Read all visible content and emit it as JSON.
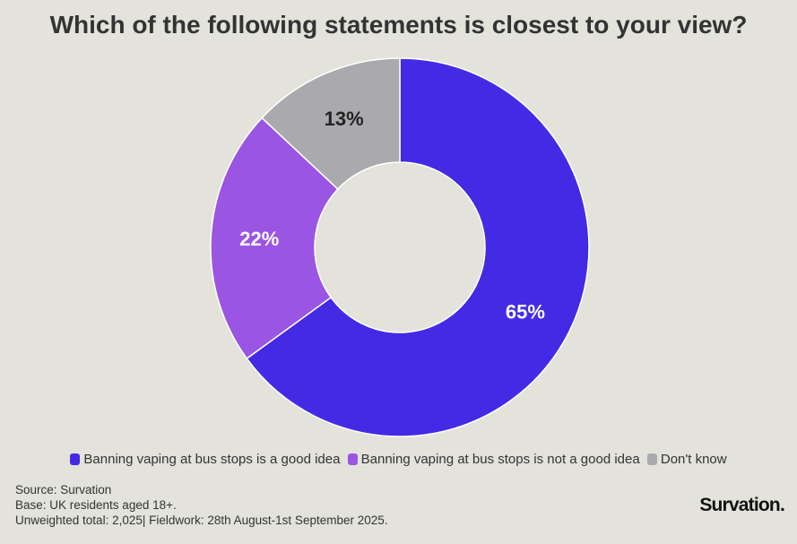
{
  "title": "Which of the following statements is closest to your view?",
  "chart_data": {
    "type": "pie",
    "donut": true,
    "categories": [
      "Banning vaping at bus stops is a good idea",
      "Banning vaping at bus stops is not a good idea",
      "Don't know"
    ],
    "values": [
      65,
      22,
      13
    ],
    "labels": [
      "65%",
      "22%",
      "13%"
    ],
    "colors": [
      "#452ae5",
      "#9b55e3",
      "#aaaaae"
    ],
    "label_colors": [
      "#ffffff",
      "#ffffff",
      "#222222"
    ],
    "legend_position": "bottom"
  },
  "footer": {
    "source": "Source: Survation",
    "base": "Base: UK residents aged 18+.",
    "fieldwork": "Unweighted total: 2,025| Fieldwork: 28th August-1st September 2025."
  },
  "logo": "Survation."
}
